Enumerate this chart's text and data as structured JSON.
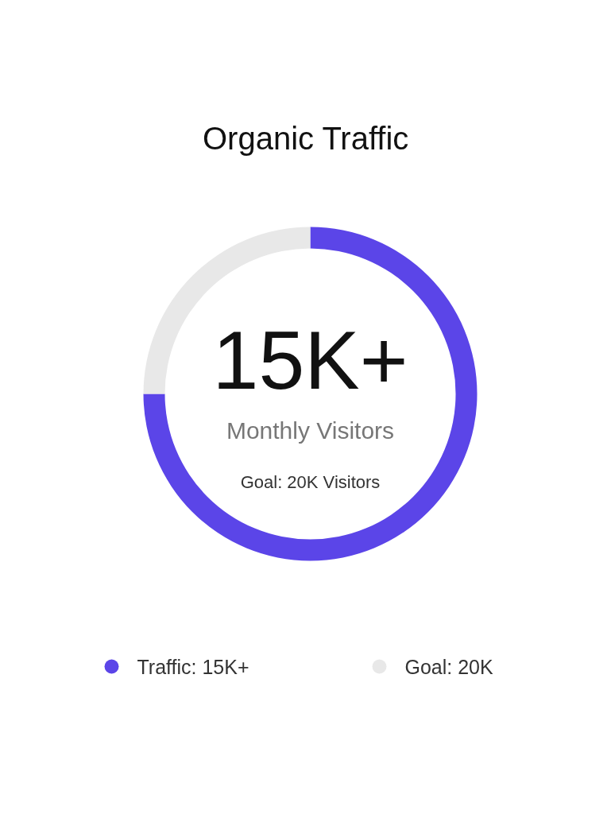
{
  "chart_data": {
    "type": "donut",
    "title": "Organic Traffic",
    "categories": [
      "Traffic: 15K+",
      "Goal: 20K"
    ],
    "values": [
      75,
      25
    ],
    "colors": [
      "#5b45e8",
      "#e8e8e8"
    ],
    "annotations": [
      "15K+",
      "Monthly Visitors",
      "Goal: 20K Visitors"
    ],
    "legend": "bottom"
  }
}
